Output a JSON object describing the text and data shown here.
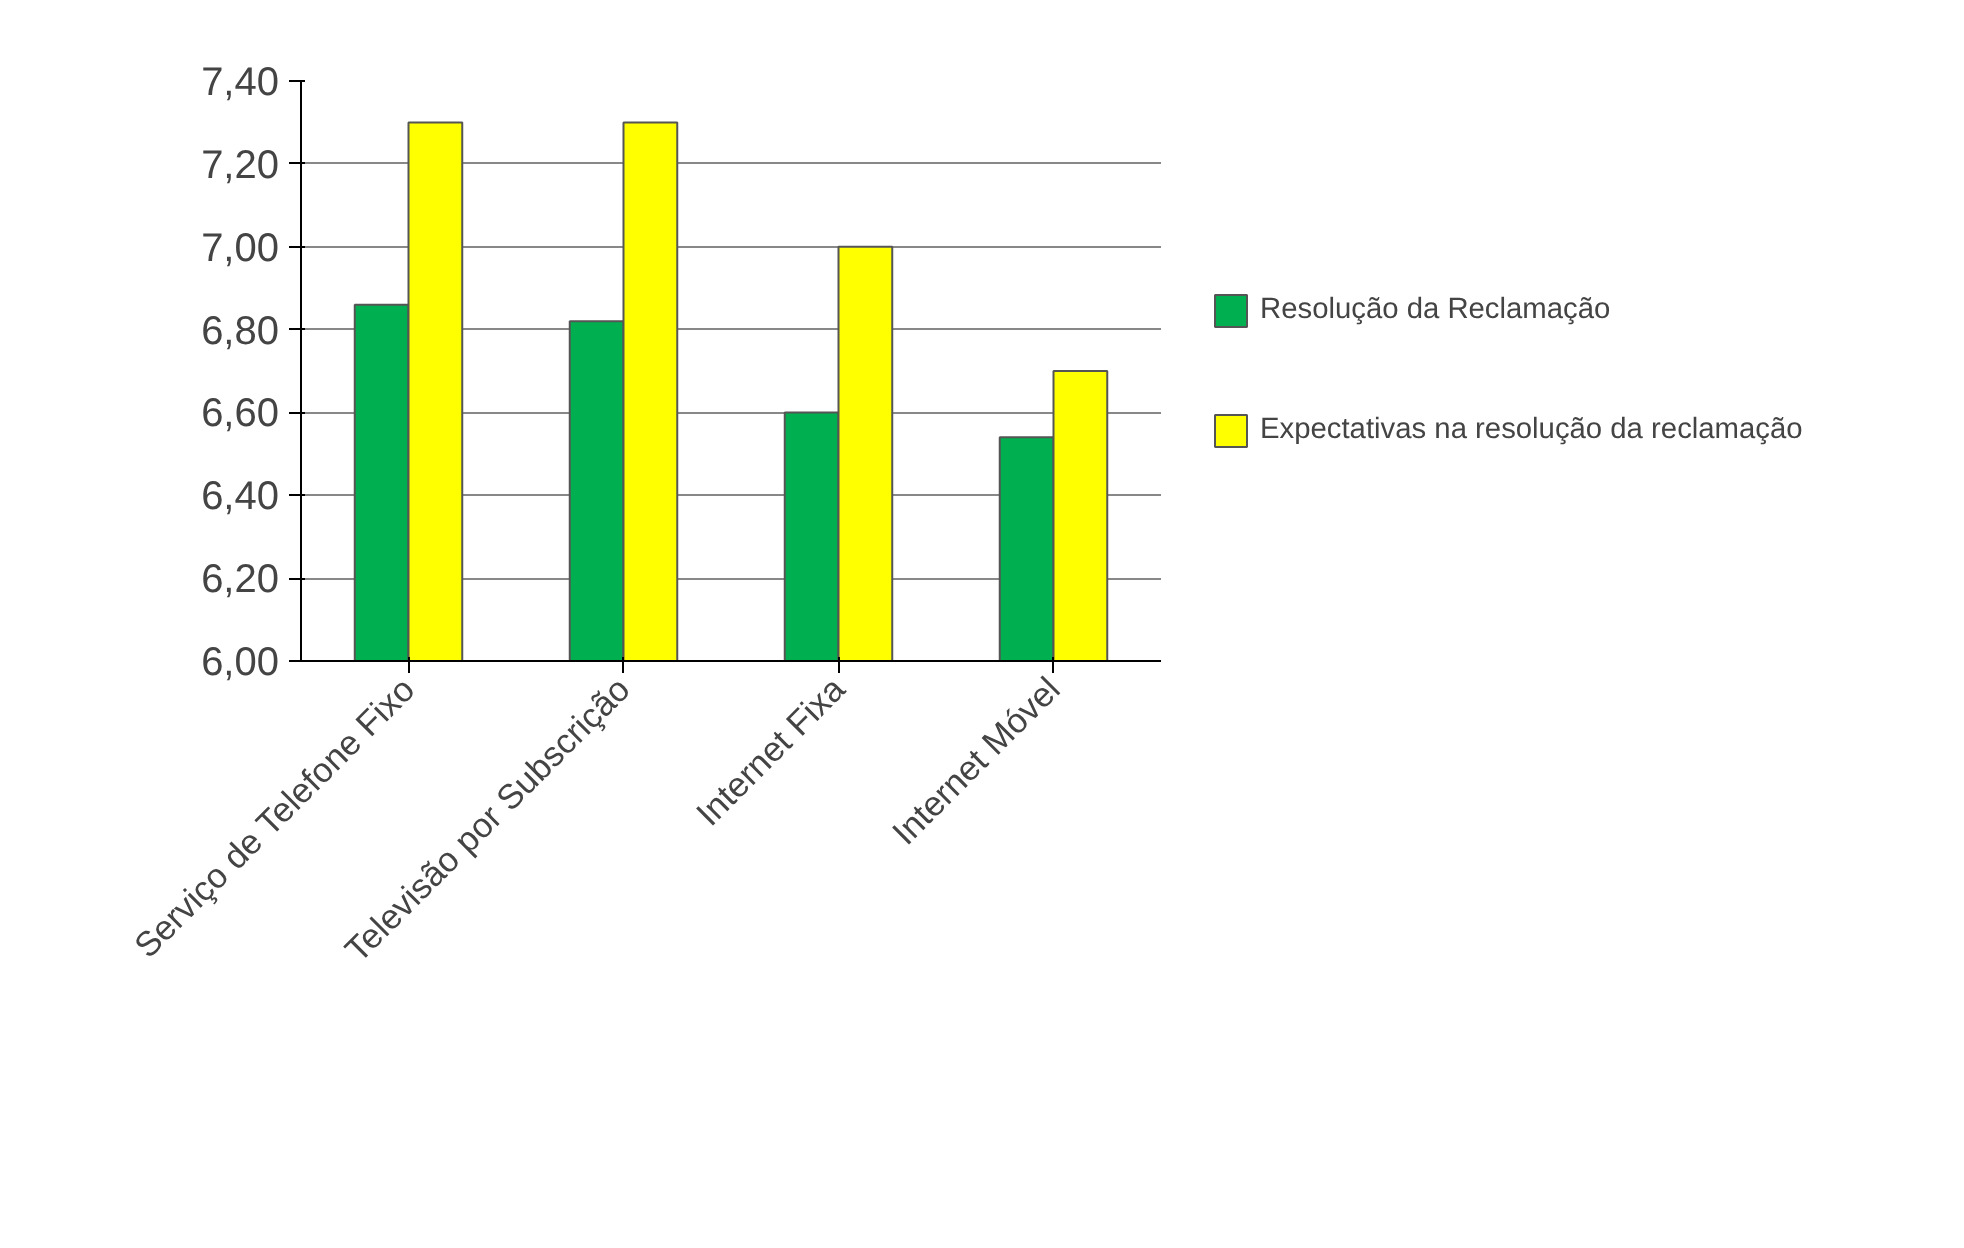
{
  "chart_data": {
    "type": "bar",
    "categories": [
      "Serviço de Telefone Fixo",
      "Televisão por Subscrição",
      "Internet Fixa",
      "Internet Móvel"
    ],
    "series": [
      {
        "name": "Resolução da Reclamação",
        "color": "#00b050",
        "values": [
          6.86,
          6.82,
          6.6,
          6.54
        ]
      },
      {
        "name": "Expectativas na resolução da reclamação",
        "color": "#ffff00",
        "values": [
          7.3,
          7.3,
          7.0,
          6.7
        ]
      }
    ],
    "ylim": [
      6.0,
      7.4
    ],
    "yticks": [
      {
        "value": 6.0,
        "label": "6,00"
      },
      {
        "value": 6.2,
        "label": "6,20"
      },
      {
        "value": 6.4,
        "label": "6,40"
      },
      {
        "value": 6.6,
        "label": "6,60"
      },
      {
        "value": 6.8,
        "label": "6,80"
      },
      {
        "value": 7.0,
        "label": "7,00"
      },
      {
        "value": 7.2,
        "label": "7,20"
      },
      {
        "value": 7.4,
        "label": "7,40"
      }
    ],
    "grid": "y",
    "legend": "right"
  }
}
